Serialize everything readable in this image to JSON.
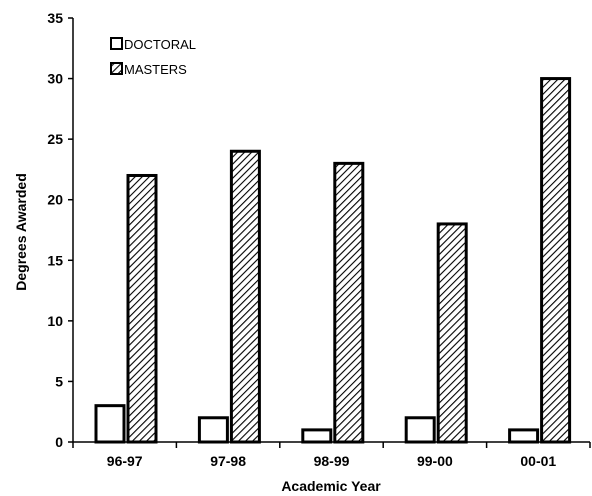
{
  "chart_data": {
    "type": "bar",
    "categories": [
      "96-97",
      "97-98",
      "98-99",
      "99-00",
      "00-01"
    ],
    "series": [
      {
        "name": "DOCTORAL",
        "values": [
          3,
          2,
          1,
          2,
          1
        ],
        "fill": "#ffffff"
      },
      {
        "name": "MASTERS",
        "values": [
          22,
          24,
          23,
          18,
          30
        ],
        "fill": "hatched"
      }
    ],
    "title": "",
    "xlabel": "Academic Year",
    "ylabel": "Degrees Awarded",
    "ylim": [
      0,
      35
    ],
    "yticks": [
      0,
      5,
      10,
      15,
      20,
      25,
      30,
      35
    ],
    "grid": false,
    "legend_position": "top-left",
    "colors": {
      "bar_outline": "#000000",
      "hatch": "#000000",
      "background": "#ffffff"
    }
  }
}
